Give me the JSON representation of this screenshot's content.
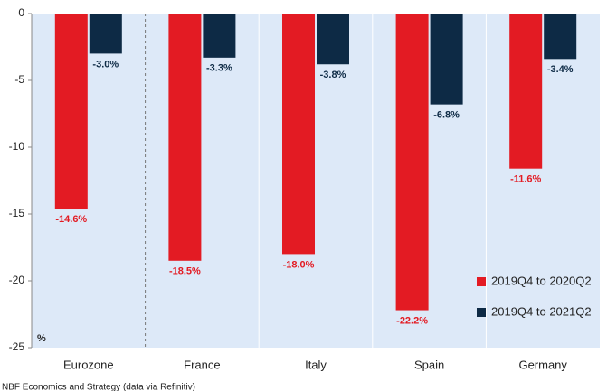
{
  "chart_data": {
    "type": "bar",
    "categories": [
      "Eurozone",
      "France",
      "Italy",
      "Spain",
      "Germany"
    ],
    "series": [
      {
        "name": "2019Q4 to 2020Q2",
        "color": "#e31b23",
        "values": [
          -14.6,
          -18.5,
          -18.0,
          -22.2,
          -11.6
        ],
        "value_labels": [
          "-14.6%",
          "-18.5%",
          "-18.0%",
          "-22.2%",
          "-11.6%"
        ]
      },
      {
        "name": "2019Q4 to 2021Q2",
        "color": "#0d2a45",
        "values": [
          -3.0,
          -3.3,
          -3.8,
          -6.8,
          -3.4
        ],
        "value_labels": [
          "-3.0%",
          "-3.3%",
          "-3.8%",
          "-6.8%",
          "-3.4%"
        ]
      }
    ],
    "ylim": [
      -25,
      0
    ],
    "yticks": [
      0,
      -5,
      -10,
      -15,
      -20,
      -25
    ],
    "y_label": "%",
    "legend": "lower right",
    "grid": false,
    "source": "NBF Economics and Strategy (data via Refinitiv)"
  }
}
